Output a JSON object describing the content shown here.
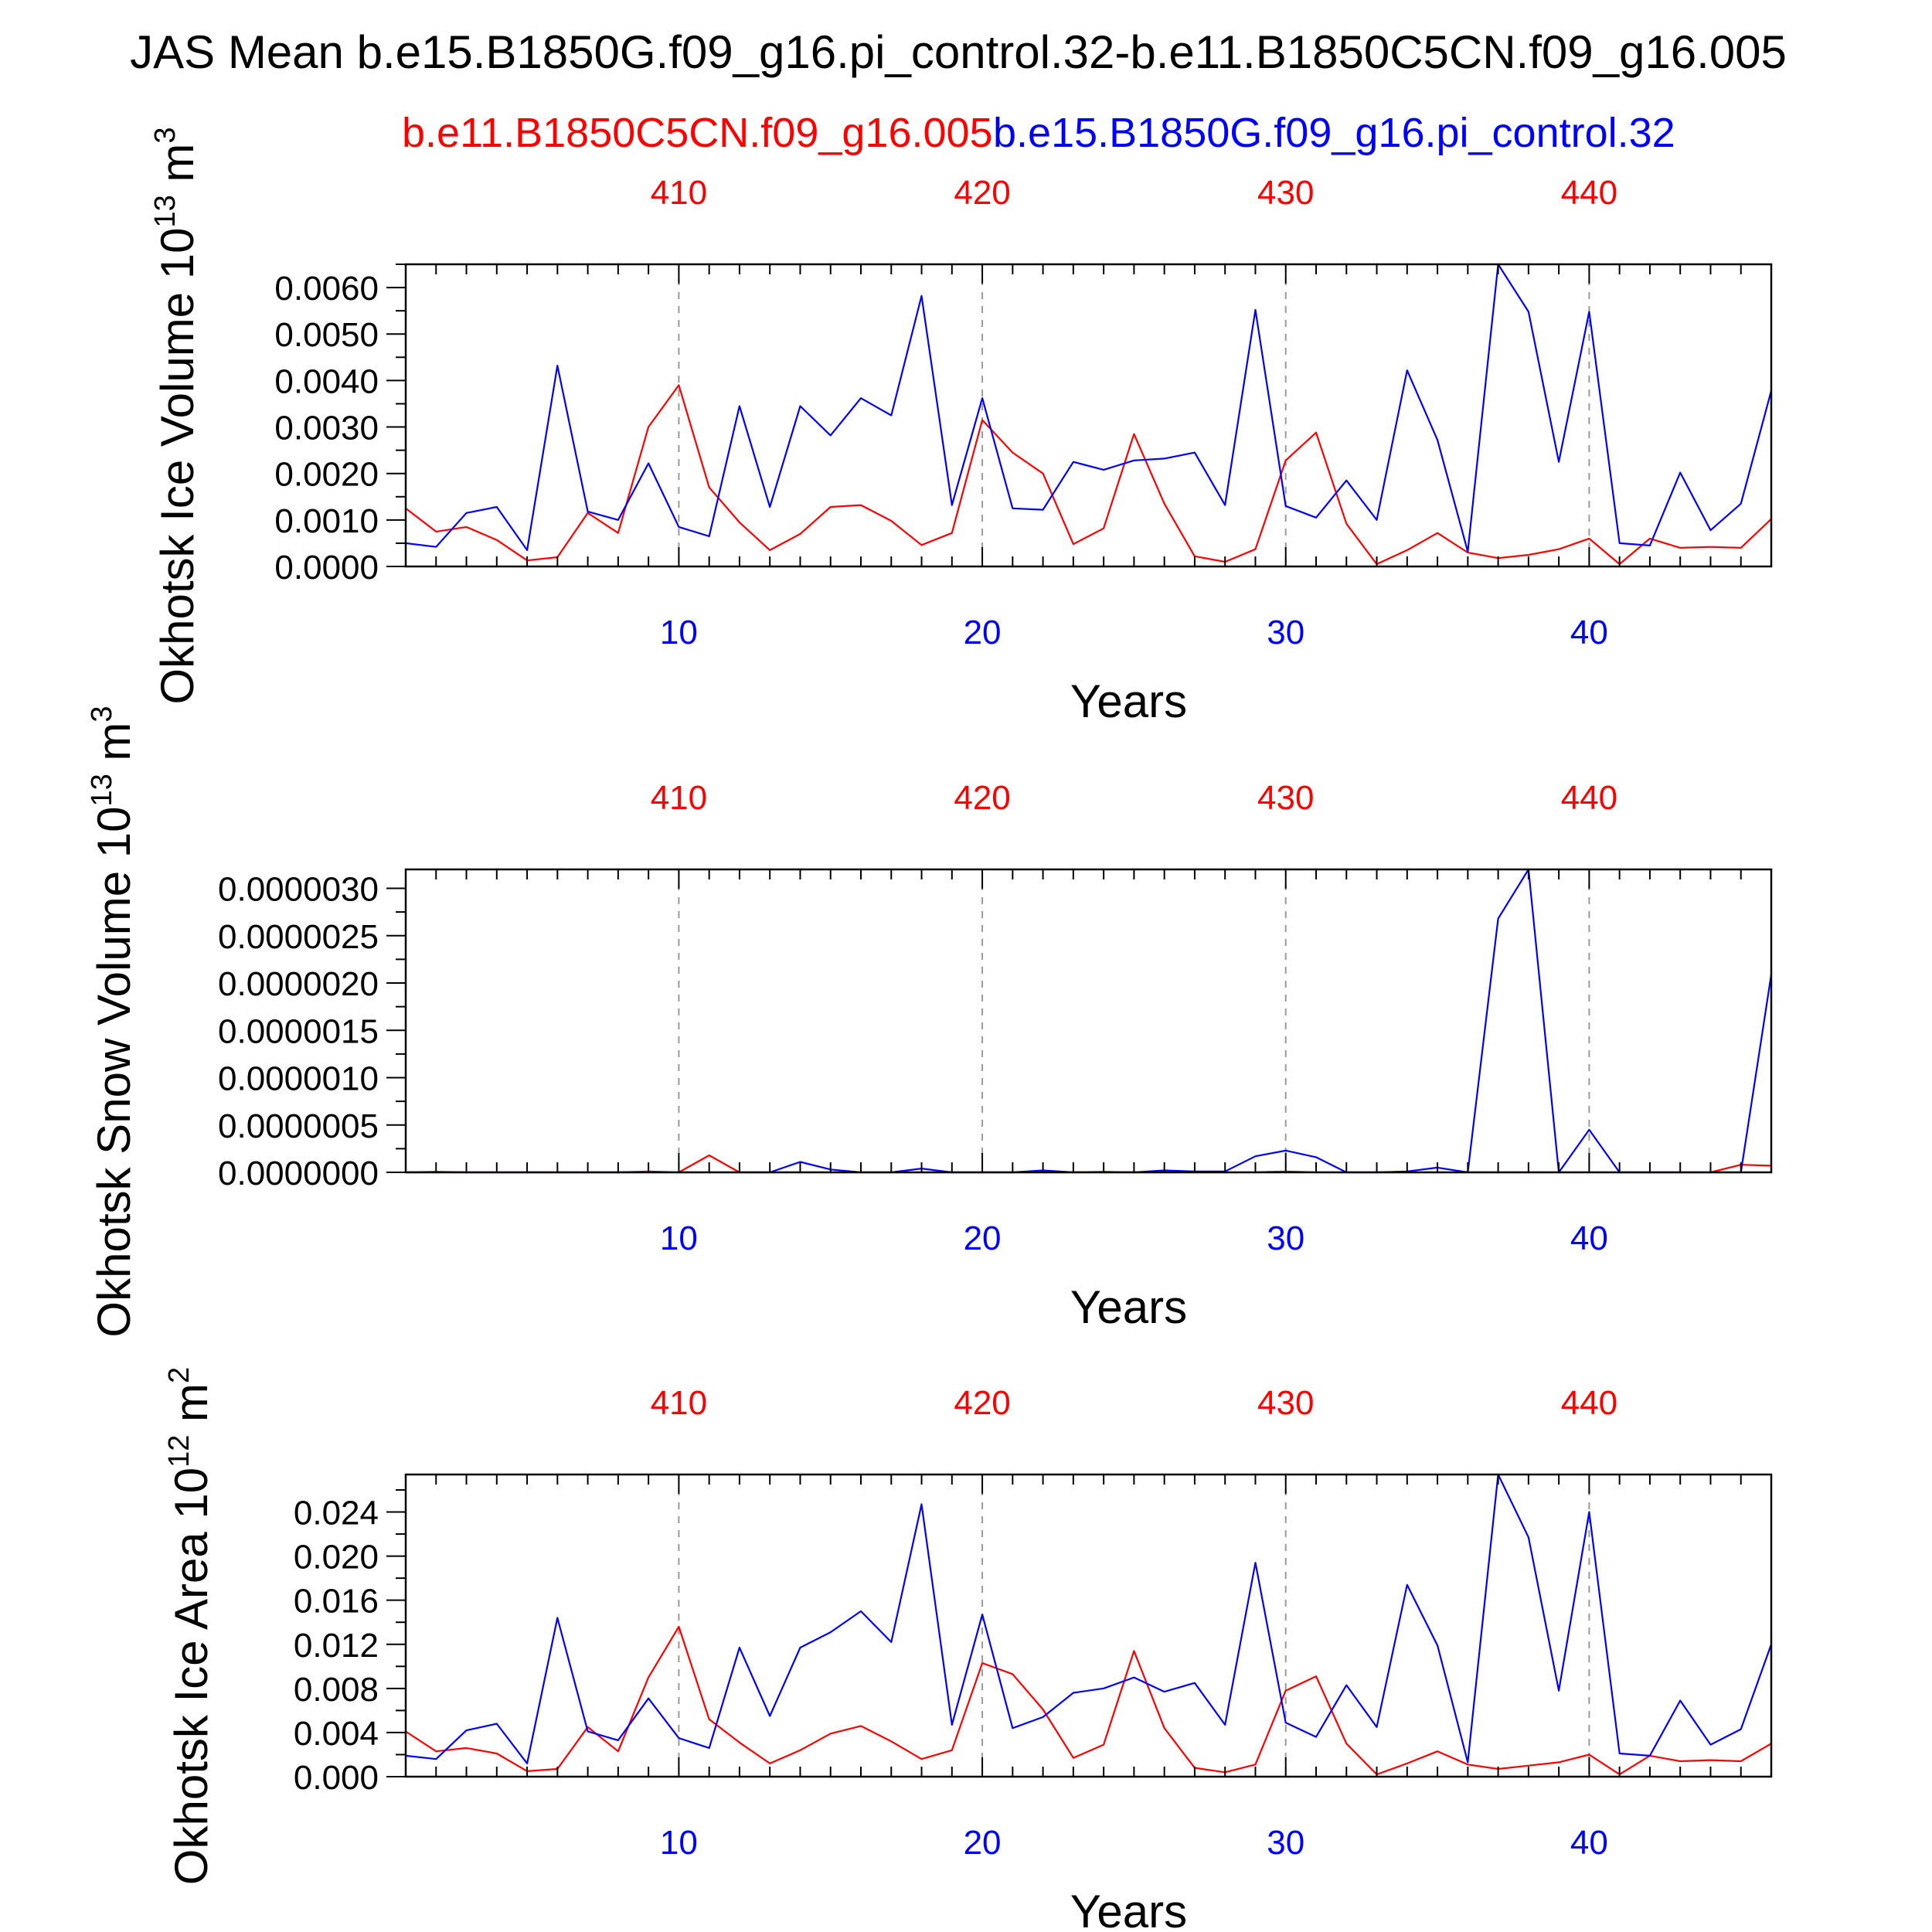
{
  "title": "JAS Mean b.e15.B1850G.f09_g16.pi_control.32-b.e11.B1850C5CN.f09_g16.005",
  "legend": {
    "red_label": "b.e11.B1850C5CN.f09_g16.005",
    "blue_label": "b.e15.B1850G.f09_g16.pi_control.32"
  },
  "colors": {
    "red": "#ff0000",
    "blue": "#0000ff",
    "axis": "#000000",
    "grid": "#9a9a9a"
  },
  "chart_data": [
    {
      "type": "line",
      "ylabel": "Okhotsk Ice Volume 10",
      "ylabel_exp": "13",
      "ylabel_unit": " m",
      "ylabel_unit_exp": "3",
      "xlabel": "Years",
      "xlim": [
        1,
        46
      ],
      "ylim": [
        0,
        0.0065
      ],
      "yticks": [
        0,
        0.001,
        0.002,
        0.003,
        0.004,
        0.005,
        0.006
      ],
      "ytick_labels": [
        "0.0000",
        "0.0010",
        "0.0020",
        "0.0030",
        "0.0040",
        "0.0050",
        "0.0060"
      ],
      "bottom_xticks": [
        10,
        20,
        30,
        40
      ],
      "bottom_xtick_labels": [
        "10",
        "20",
        "30",
        "40"
      ],
      "top_xticks": [
        10,
        20,
        30,
        40
      ],
      "top_xtick_labels": [
        "410",
        "420",
        "430",
        "440"
      ],
      "grid_x": [
        10,
        20,
        30,
        40
      ],
      "series": [
        {
          "color": "red",
          "x": [
            1,
            2,
            3,
            4,
            5,
            6,
            7,
            8,
            9,
            10,
            11,
            12,
            13,
            14,
            15,
            16,
            17,
            18,
            19,
            20,
            21,
            22,
            23,
            24,
            25,
            26,
            27,
            28,
            29,
            30,
            31,
            32,
            33,
            34,
            35,
            36,
            37,
            38,
            39,
            40,
            41,
            42,
            43,
            44,
            45,
            46
          ],
          "values": [
            0.00125,
            0.00075,
            0.00085,
            0.00057,
            0.00013,
            0.0002,
            0.00115,
            0.00072,
            0.003,
            0.0039,
            0.0017,
            0.00095,
            0.00035,
            0.0007,
            0.00128,
            0.00132,
            0.00098,
            0.00046,
            0.00072,
            0.00315,
            0.00245,
            0.002,
            0.00048,
            0.00082,
            0.00285,
            0.00135,
            0.00022,
            0.0001,
            0.00037,
            0.00228,
            0.00288,
            0.00092,
            5e-05,
            0.00035,
            0.00072,
            0.0003,
            0.00018,
            0.00025,
            0.00037,
            0.0006,
            5e-05,
            0.0006,
            0.0004,
            0.00042,
            0.0004,
            0.00102
          ]
        },
        {
          "color": "blue",
          "x": [
            1,
            2,
            3,
            4,
            5,
            6,
            7,
            8,
            9,
            10,
            11,
            12,
            13,
            14,
            15,
            16,
            17,
            18,
            19,
            20,
            21,
            22,
            23,
            24,
            25,
            26,
            27,
            28,
            29,
            30,
            31,
            32,
            33,
            34,
            35,
            36,
            37,
            38,
            39,
            40,
            41,
            42,
            43,
            44,
            45,
            46
          ],
          "values": [
            0.0005,
            0.00042,
            0.00115,
            0.00128,
            0.00035,
            0.00432,
            0.00118,
            0.001,
            0.00222,
            0.00085,
            0.00065,
            0.00345,
            0.00128,
            0.00345,
            0.00282,
            0.00362,
            0.00325,
            0.00582,
            0.00132,
            0.00362,
            0.00125,
            0.00122,
            0.00225,
            0.00208,
            0.00228,
            0.00232,
            0.00245,
            0.00132,
            0.00552,
            0.0013,
            0.00105,
            0.00185,
            0.001,
            0.00422,
            0.00272,
            0.00032,
            0.0065,
            0.00548,
            0.00225,
            0.00548,
            0.0005,
            0.00045,
            0.00202,
            0.00078,
            0.00135,
            0.00378
          ]
        }
      ]
    },
    {
      "type": "line",
      "ylabel": "Okhotsk Snow Volume 10",
      "ylabel_exp": "13",
      "ylabel_unit": " m",
      "ylabel_unit_exp": "3",
      "xlabel": "Years",
      "xlim": [
        1,
        46
      ],
      "ylim": [
        0,
        3.2e-06
      ],
      "yticks": [
        0,
        5e-07,
        1e-06,
        1.5e-06,
        2e-06,
        2.5e-06,
        3e-06
      ],
      "ytick_labels": [
        "0.0000000",
        "0.0000005",
        "0.0000010",
        "0.0000015",
        "0.0000020",
        "0.0000025",
        "0.0000030"
      ],
      "bottom_xticks": [
        10,
        20,
        30,
        40
      ],
      "bottom_xtick_labels": [
        "10",
        "20",
        "30",
        "40"
      ],
      "top_xticks": [
        10,
        20,
        30,
        40
      ],
      "top_xtick_labels": [
        "410",
        "420",
        "430",
        "440"
      ],
      "grid_x": [
        10,
        20,
        30,
        40
      ],
      "series": [
        {
          "color": "red",
          "x": [
            1,
            2,
            3,
            4,
            5,
            6,
            7,
            8,
            9,
            10,
            11,
            12,
            13,
            14,
            15,
            16,
            17,
            18,
            19,
            20,
            21,
            22,
            23,
            24,
            25,
            26,
            27,
            28,
            29,
            30,
            31,
            32,
            33,
            34,
            35,
            36,
            37,
            38,
            39,
            40,
            41,
            42,
            43,
            44,
            45,
            46
          ],
          "values": [
            0,
            0,
            0,
            0,
            0,
            0,
            0,
            0,
            1e-08,
            0,
            1.8e-07,
            0,
            0,
            0,
            0,
            0,
            0,
            0,
            0,
            0,
            0,
            0,
            0,
            0,
            0,
            0,
            0,
            0,
            0,
            1e-08,
            0,
            0,
            0,
            0,
            0,
            0,
            0,
            0,
            0,
            0,
            0,
            0,
            0,
            0,
            8e-08,
            7e-08
          ]
        },
        {
          "color": "blue",
          "x": [
            1,
            2,
            3,
            4,
            5,
            6,
            7,
            8,
            9,
            10,
            11,
            12,
            13,
            14,
            15,
            16,
            17,
            18,
            19,
            20,
            21,
            22,
            23,
            24,
            25,
            26,
            27,
            28,
            29,
            30,
            31,
            32,
            33,
            34,
            35,
            36,
            37,
            38,
            39,
            40,
            41,
            42,
            43,
            44,
            45,
            46
          ],
          "values": [
            0,
            5e-09,
            0,
            0,
            0,
            0,
            0,
            0,
            0,
            0,
            0,
            0,
            0,
            1.1e-07,
            3e-08,
            0,
            0,
            4e-08,
            0,
            0,
            0,
            2e-08,
            0,
            5e-09,
            0,
            2e-08,
            1e-08,
            1e-08,
            1.7e-07,
            2.3e-07,
            1.6e-07,
            0,
            0,
            1e-08,
            5e-08,
            0,
            2.68e-06,
            3.2e-06,
            0,
            4.5e-07,
            0,
            0,
            0,
            0,
            0,
            2.09e-06
          ]
        }
      ]
    },
    {
      "type": "line",
      "ylabel": "Okhotsk Ice Area 10",
      "ylabel_exp": "12",
      "ylabel_unit": " m",
      "ylabel_unit_exp": "2",
      "xlabel": "Years",
      "xlim": [
        1,
        46
      ],
      "ylim": [
        0,
        0.0274
      ],
      "yticks": [
        0,
        0.004,
        0.008,
        0.012,
        0.016,
        0.02,
        0.024
      ],
      "ytick_labels": [
        "0.000",
        "0.004",
        "0.008",
        "0.012",
        "0.016",
        "0.020",
        "0.024"
      ],
      "bottom_xticks": [
        10,
        20,
        30,
        40
      ],
      "bottom_xtick_labels": [
        "10",
        "20",
        "30",
        "40"
      ],
      "top_xticks": [
        10,
        20,
        30,
        40
      ],
      "top_xtick_labels": [
        "410",
        "420",
        "430",
        "440"
      ],
      "grid_x": [
        10,
        20,
        30,
        40
      ],
      "series": [
        {
          "color": "red",
          "x": [
            1,
            2,
            3,
            4,
            5,
            6,
            7,
            8,
            9,
            10,
            11,
            12,
            13,
            14,
            15,
            16,
            17,
            18,
            19,
            20,
            21,
            22,
            23,
            24,
            25,
            26,
            27,
            28,
            29,
            30,
            31,
            32,
            33,
            34,
            35,
            36,
            37,
            38,
            39,
            40,
            41,
            42,
            43,
            44,
            45,
            46
          ],
          "values": [
            0.0041,
            0.0023,
            0.0026,
            0.0021,
            0.0005,
            0.0007,
            0.0045,
            0.0023,
            0.009,
            0.0136,
            0.0052,
            0.0031,
            0.0012,
            0.0024,
            0.0039,
            0.0046,
            0.0032,
            0.0016,
            0.0024,
            0.0103,
            0.0093,
            0.0061,
            0.0017,
            0.0029,
            0.0114,
            0.0044,
            0.0008,
            0.0004,
            0.0011,
            0.0078,
            0.0091,
            0.003,
            0.0002,
            0.0012,
            0.0023,
            0.0011,
            0.0007,
            0.001,
            0.0013,
            0.002,
            0.0002,
            0.0019,
            0.0014,
            0.0015,
            0.0014,
            0.003
          ]
        },
        {
          "color": "blue",
          "x": [
            1,
            2,
            3,
            4,
            5,
            6,
            7,
            8,
            9,
            10,
            11,
            12,
            13,
            14,
            15,
            16,
            17,
            18,
            19,
            20,
            21,
            22,
            23,
            24,
            25,
            26,
            27,
            28,
            29,
            30,
            31,
            32,
            33,
            34,
            35,
            36,
            37,
            38,
            39,
            40,
            41,
            42,
            43,
            44,
            45,
            46
          ],
          "values": [
            0.0019,
            0.0016,
            0.0042,
            0.0048,
            0.0012,
            0.0144,
            0.0041,
            0.0033,
            0.0071,
            0.0035,
            0.0026,
            0.0117,
            0.0055,
            0.0117,
            0.0131,
            0.015,
            0.0122,
            0.0247,
            0.0047,
            0.0147,
            0.0044,
            0.0054,
            0.0076,
            0.008,
            0.009,
            0.0077,
            0.0085,
            0.0047,
            0.0194,
            0.0049,
            0.0036,
            0.0083,
            0.0045,
            0.0174,
            0.0119,
            0.0013,
            0.0274,
            0.0217,
            0.0078,
            0.024,
            0.0021,
            0.0019,
            0.0069,
            0.0029,
            0.0043,
            0.012
          ]
        }
      ]
    }
  ]
}
